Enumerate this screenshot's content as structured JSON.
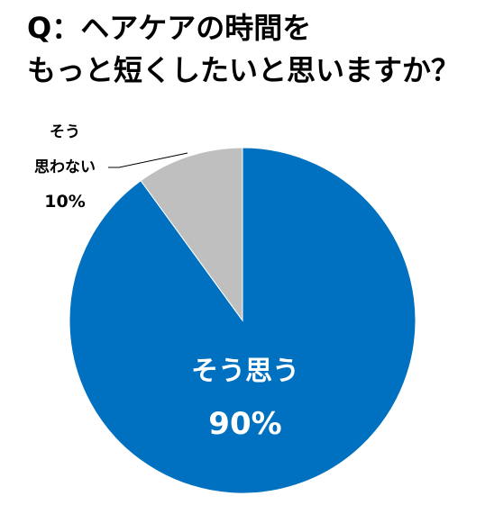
{
  "chart_data": {
    "type": "pie",
    "title_lines": [
      "Q：ヘアケアの時間を",
      "もっと短くしたいと思いますか？"
    ],
    "slices": [
      {
        "label_lines": [
          "そう思う"
        ],
        "value": 90,
        "value_label": "90%",
        "color": "#0070C0",
        "label_color": "#ffffff"
      },
      {
        "label_lines": [
          "そう",
          "思わない"
        ],
        "value": 10,
        "value_label": "10%",
        "color": "#BFBFBF",
        "label_color": "#000000"
      }
    ],
    "start": "12 o'clock",
    "direction": "clockwise",
    "legend": "none"
  }
}
